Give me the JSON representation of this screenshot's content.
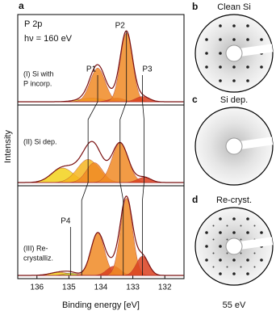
{
  "chart_data": [
    {
      "type": "xps",
      "panel": "a",
      "title": "P 2p",
      "subtitle": "hν = 160 eV",
      "xlabel": "Binding energy [eV]",
      "ylabel": "Intensity",
      "xlim": [
        136.6,
        131.4
      ],
      "xticks": [
        136,
        135,
        134,
        133,
        132
      ],
      "ylim": [
        0,
        1.1
      ],
      "spectra": [
        {
          "name": [
            "(I) Si with",
            "P incorp."
          ],
          "peaks": [
            {
              "center": 134.3,
              "height": 0.05,
              "width": 0.9,
              "color": "#f2d21b"
            },
            {
              "center": 134.1,
              "height": 0.45,
              "width": 0.55,
              "color": "#f08a24"
            },
            {
              "center": 133.5,
              "height": 0.05,
              "width": 0.55,
              "color": "#d9401e"
            },
            {
              "center": 133.2,
              "height": 0.92,
              "width": 0.45,
              "color": "#f08a24"
            },
            {
              "center": 132.7,
              "height": 0.07,
              "width": 0.5,
              "color": "#d9401e"
            }
          ]
        },
        {
          "name": [
            "(II) Si dep."
          ],
          "peaks": [
            {
              "center": 135.2,
              "height": 0.22,
              "width": 0.8,
              "color": "#f2d21b"
            },
            {
              "center": 134.4,
              "height": 0.35,
              "width": 0.8,
              "color": "#f5b520"
            },
            {
              "center": 134.2,
              "height": 0.3,
              "width": 0.6,
              "color": "#f08a24"
            },
            {
              "center": 133.4,
              "height": 0.6,
              "width": 0.6,
              "color": "#f08a24"
            },
            {
              "center": 132.65,
              "height": 0.08,
              "width": 0.5,
              "color": "#d9401e"
            }
          ]
        },
        {
          "name": [
            "(III) Re-",
            "crystalliz."
          ],
          "peaks": [
            {
              "center": 135.3,
              "height": 0.04,
              "width": 0.7,
              "color": "#f2d21b"
            },
            {
              "center": 134.95,
              "height": 0.03,
              "width": 0.5,
              "color": "#b5d334"
            },
            {
              "center": 134.1,
              "height": 0.55,
              "width": 0.5,
              "color": "#f08a24"
            },
            {
              "center": 133.6,
              "height": 0.12,
              "width": 0.5,
              "color": "#d9401e"
            },
            {
              "center": 133.2,
              "height": 1.0,
              "width": 0.45,
              "color": "#f08a24"
            },
            {
              "center": 132.7,
              "height": 0.25,
              "width": 0.45,
              "color": "#d9401e"
            }
          ]
        }
      ],
      "annotations": [
        {
          "text": "P1",
          "x": [
            134.1,
            134.4,
            134.6
          ]
        },
        {
          "text": "P2",
          "x": [
            133.2,
            133.4,
            133.3
          ]
        },
        {
          "text": "P3",
          "x": [
            132.7,
            132.65,
            132.7
          ]
        },
        {
          "text": "P4",
          "x": [
            134.95
          ]
        }
      ]
    },
    {
      "type": "image",
      "images": [
        {
          "panel": "b",
          "title": "Clean Si"
        },
        {
          "panel": "c",
          "title": "Si dep."
        },
        {
          "panel": "d",
          "title": "Re-cryst."
        }
      ],
      "caption": "55 eV"
    }
  ]
}
